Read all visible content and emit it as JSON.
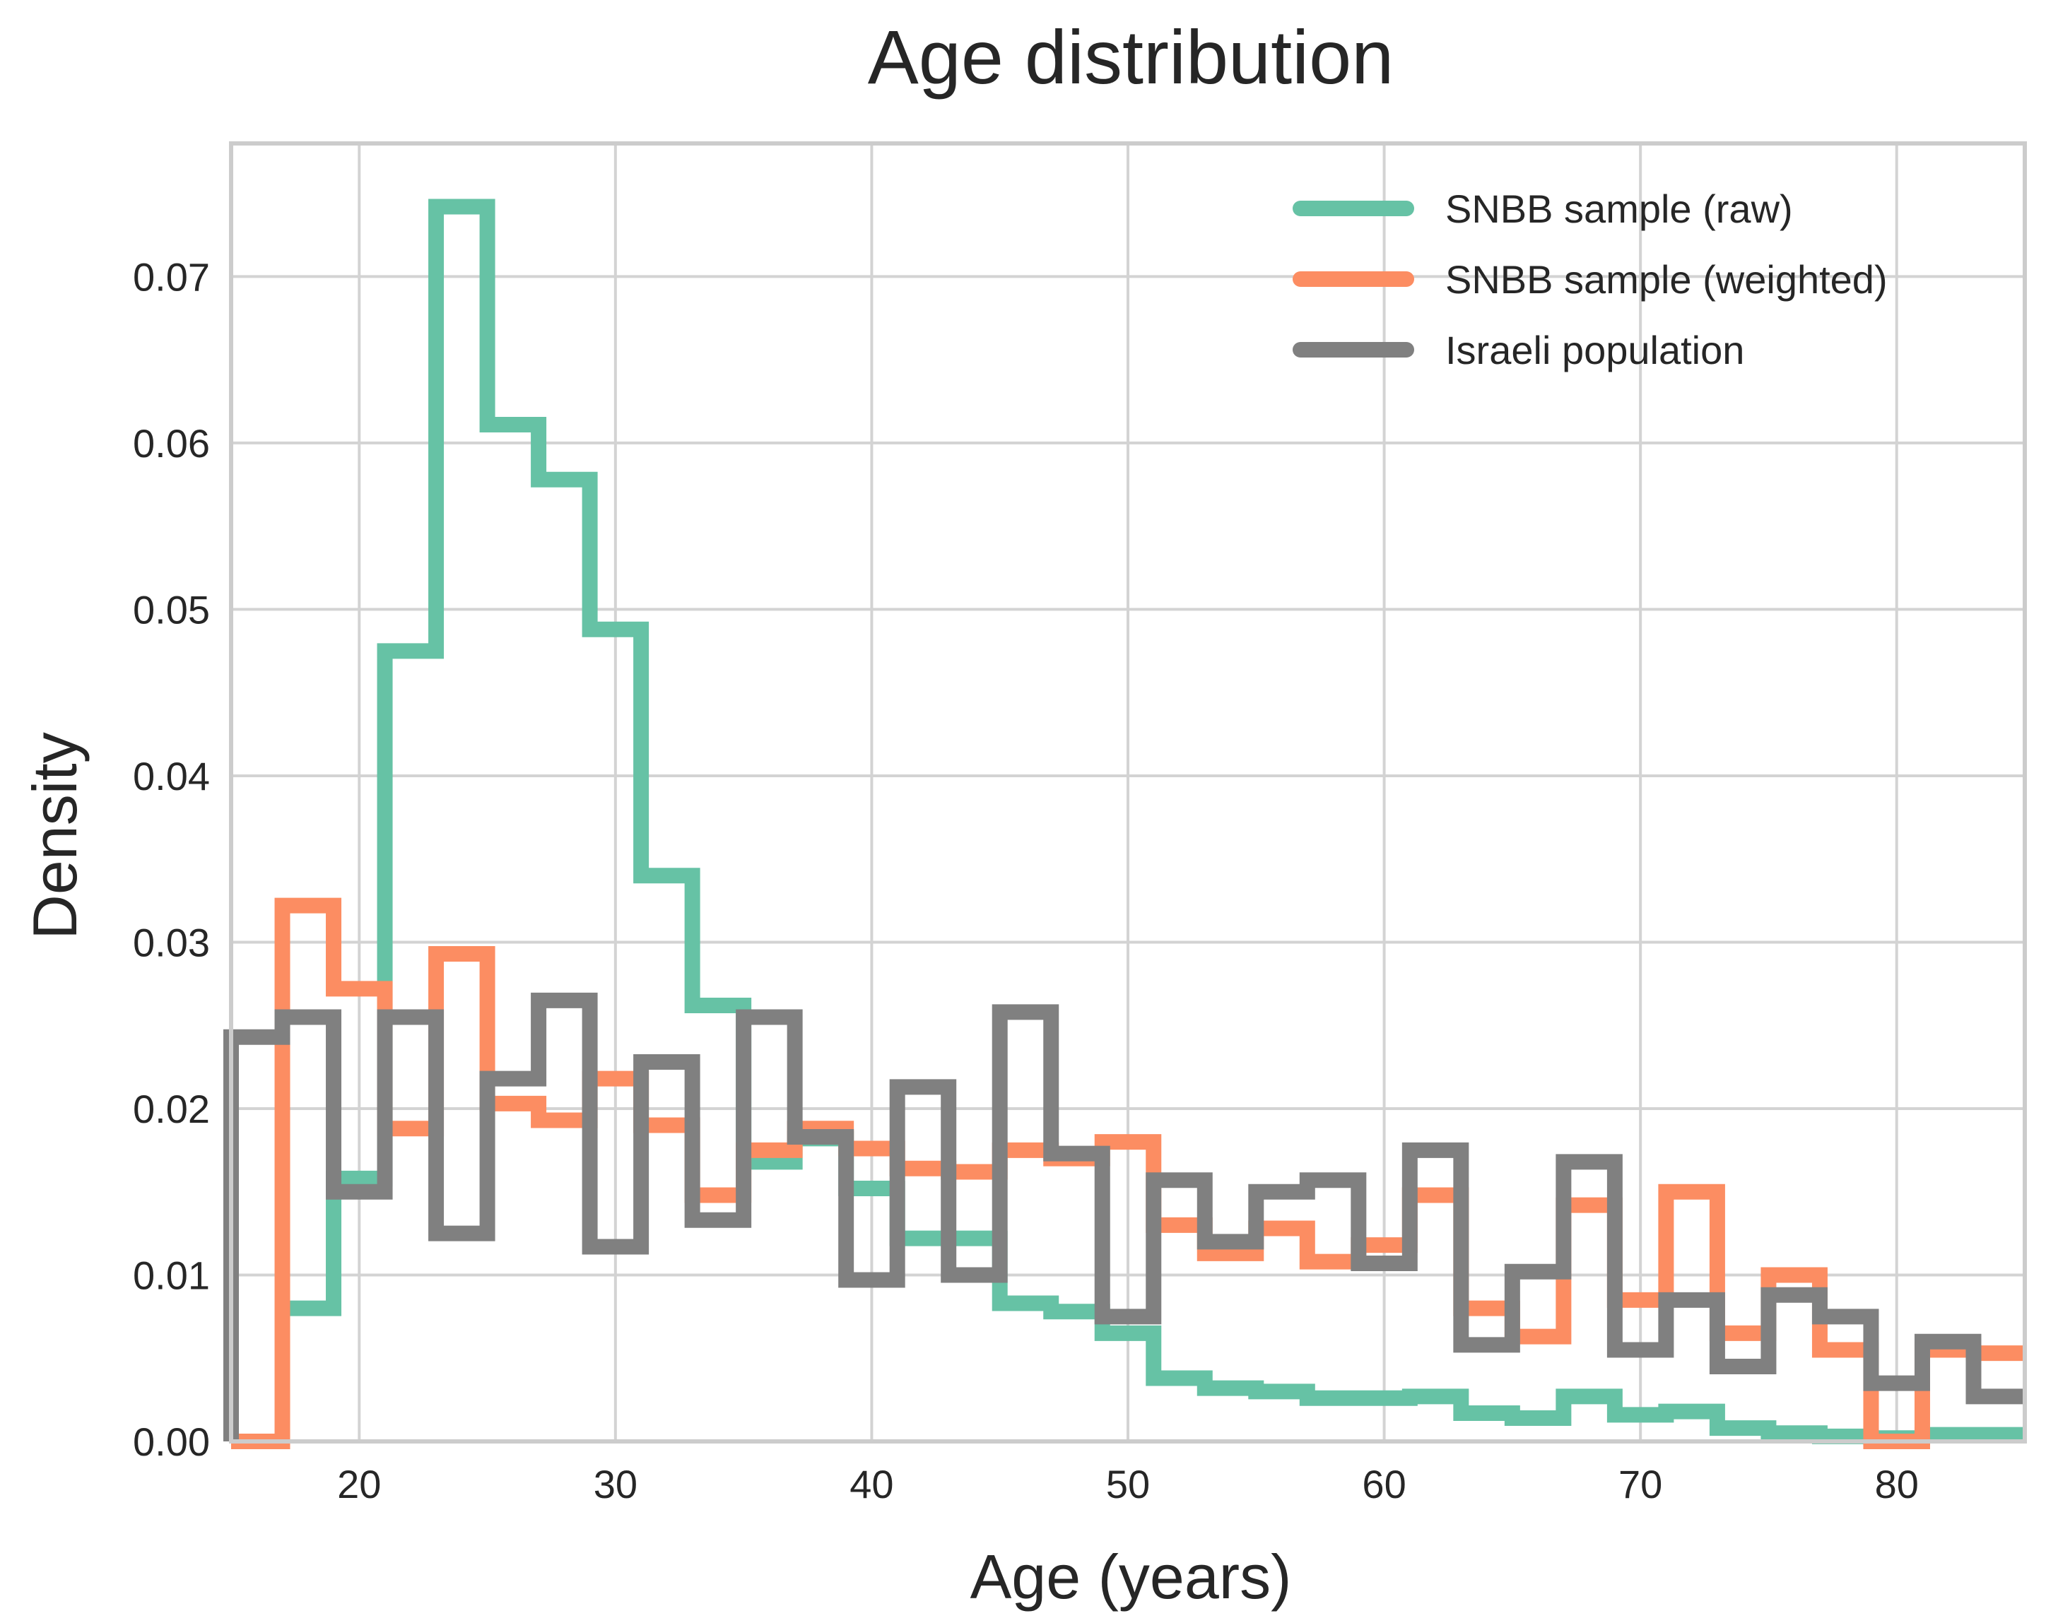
{
  "chart_data": {
    "type": "line",
    "title": "Age distribution",
    "xlabel": "Age (years)",
    "ylabel": "Density",
    "xlim": [
      15,
      85
    ],
    "ylim": [
      0,
      0.078
    ],
    "x_ticks": [
      20,
      30,
      40,
      50,
      60,
      70,
      80
    ],
    "y_ticks": [
      0.0,
      0.01,
      0.02,
      0.03,
      0.04,
      0.05,
      0.06,
      0.07
    ],
    "x_tick_labels": [
      "20",
      "30",
      "40",
      "50",
      "60",
      "70",
      "80"
    ],
    "y_tick_labels": [
      "0.00",
      "0.01",
      "0.02",
      "0.03",
      "0.04",
      "0.05",
      "0.06",
      "0.07"
    ],
    "grid": true,
    "legend_position": "top-right",
    "histtype": "step",
    "bin_edges": [
      15,
      17,
      19,
      21,
      23,
      25,
      27,
      29,
      31,
      33,
      35,
      37,
      39,
      41,
      43,
      45,
      47,
      49,
      51,
      53,
      55,
      57,
      59,
      61,
      63,
      65,
      67,
      69,
      71,
      73,
      75,
      77,
      79,
      81,
      83,
      85
    ],
    "series": [
      {
        "name": "SNBB sample (raw)",
        "color": "#66c2a5",
        "values": [
          null,
          0.008,
          0.0158,
          0.0475,
          0.0742,
          0.0611,
          0.0578,
          0.0488,
          0.034,
          0.0262,
          0.0168,
          0.0182,
          0.0152,
          0.0122,
          0.0122,
          0.0083,
          0.0078,
          0.0065,
          0.0038,
          0.0032,
          0.003,
          0.0026,
          0.0026,
          0.0027,
          0.0017,
          0.0014,
          0.0027,
          0.0016,
          0.0018,
          0.0008,
          0.0005,
          0.0003,
          0.0002,
          0.0004,
          0.0004
        ]
      },
      {
        "name": "SNBB sample (weighted)",
        "color": "#fc8d62",
        "values": [
          0.0,
          0.0322,
          0.0272,
          0.0188,
          0.0293,
          0.0203,
          0.0193,
          0.0218,
          0.019,
          0.0148,
          0.0175,
          0.0188,
          0.0176,
          0.0164,
          0.0162,
          0.0175,
          0.017,
          0.018,
          0.013,
          0.0113,
          0.0128,
          0.0108,
          0.0118,
          0.0148,
          0.008,
          0.0063,
          0.0142,
          0.0085,
          0.015,
          0.0065,
          0.01,
          0.0055,
          0.0,
          0.0055,
          0.0053
        ]
      },
      {
        "name": "Israeli population",
        "color": "#808080",
        "values": [
          0.0243,
          0.0255,
          0.015,
          0.0255,
          0.0125,
          0.0218,
          0.0265,
          0.0117,
          0.0228,
          0.0133,
          0.0255,
          0.0183,
          0.0097,
          0.0213,
          0.01,
          0.0258,
          0.0173,
          0.0075,
          0.0157,
          0.012,
          0.015,
          0.0157,
          0.0107,
          0.0175,
          0.0058,
          0.0102,
          0.0168,
          0.0055,
          0.0085,
          0.0045,
          0.0088,
          0.0075,
          0.0035,
          0.006,
          0.0027
        ]
      }
    ]
  }
}
